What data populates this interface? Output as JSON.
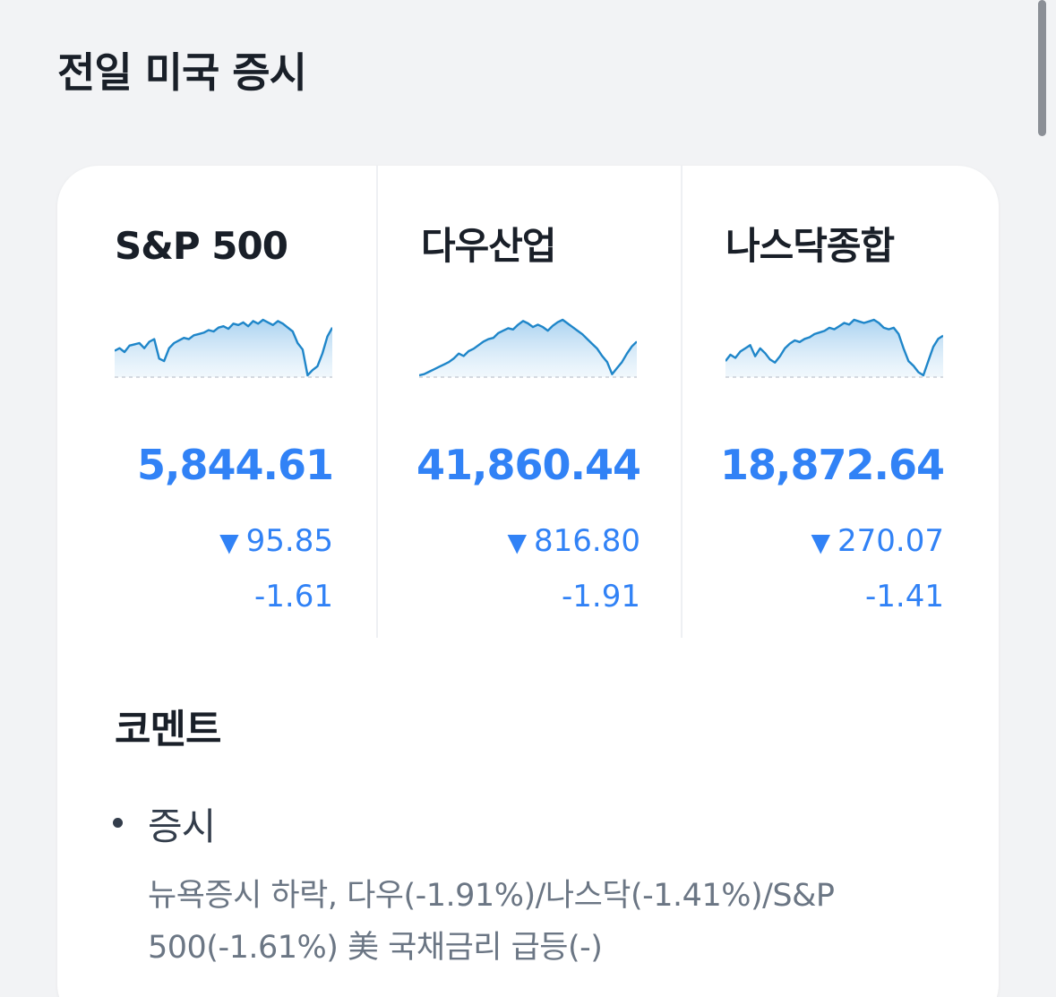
{
  "section_title": "전일 미국 증시",
  "indices": [
    {
      "name": "S&P 500",
      "price": "5,844.61",
      "direction_icon": "triangle-down",
      "change": "95.85",
      "change_pct": "-1.61",
      "color": "#3182f6",
      "chart_data": {
        "type": "area",
        "values": [
          64,
          66,
          63,
          68,
          69,
          70,
          66,
          71,
          73,
          58,
          56,
          66,
          70,
          72,
          74,
          73,
          76,
          77,
          78,
          80,
          79,
          82,
          83,
          81,
          85,
          84,
          86,
          83,
          87,
          85,
          88,
          86,
          84,
          87,
          85,
          82,
          79,
          70,
          65,
          45,
          49,
          52,
          62,
          75,
          82
        ]
      }
    },
    {
      "name": "다우산업",
      "price": "41,860.44",
      "direction_icon": "triangle-down",
      "change": "816.80",
      "change_pct": "-1.91",
      "color": "#3182f6",
      "chart_data": {
        "type": "area",
        "values": [
          44,
          45,
          47,
          49,
          51,
          53,
          55,
          58,
          62,
          60,
          64,
          66,
          69,
          72,
          74,
          75,
          79,
          81,
          83,
          82,
          86,
          89,
          87,
          84,
          86,
          84,
          81,
          85,
          88,
          90,
          87,
          84,
          81,
          78,
          74,
          70,
          66,
          60,
          55,
          45,
          50,
          55,
          62,
          68,
          72
        ]
      }
    },
    {
      "name": "나스닥종합",
      "price": "18,872.64",
      "direction_icon": "triangle-down",
      "change": "270.07",
      "change_pct": "-1.41",
      "color": "#3182f6",
      "chart_data": {
        "type": "area",
        "values": [
          60,
          64,
          62,
          66,
          68,
          70,
          63,
          68,
          65,
          61,
          59,
          63,
          68,
          71,
          73,
          72,
          74,
          75,
          77,
          78,
          79,
          81,
          80,
          82,
          84,
          83,
          86,
          85,
          84,
          85,
          86,
          84,
          81,
          80,
          81,
          77,
          68,
          60,
          57,
          53,
          51,
          60,
          69,
          74,
          76
        ]
      }
    }
  ],
  "comment": {
    "title": "코멘트",
    "items": [
      {
        "heading": "증시",
        "body": "뉴욕증시 하락, 다우(-1.91%)/나스닥(-1.41%)/S&P 500(-1.61%) 美 국채금리 급등(-)"
      }
    ]
  }
}
